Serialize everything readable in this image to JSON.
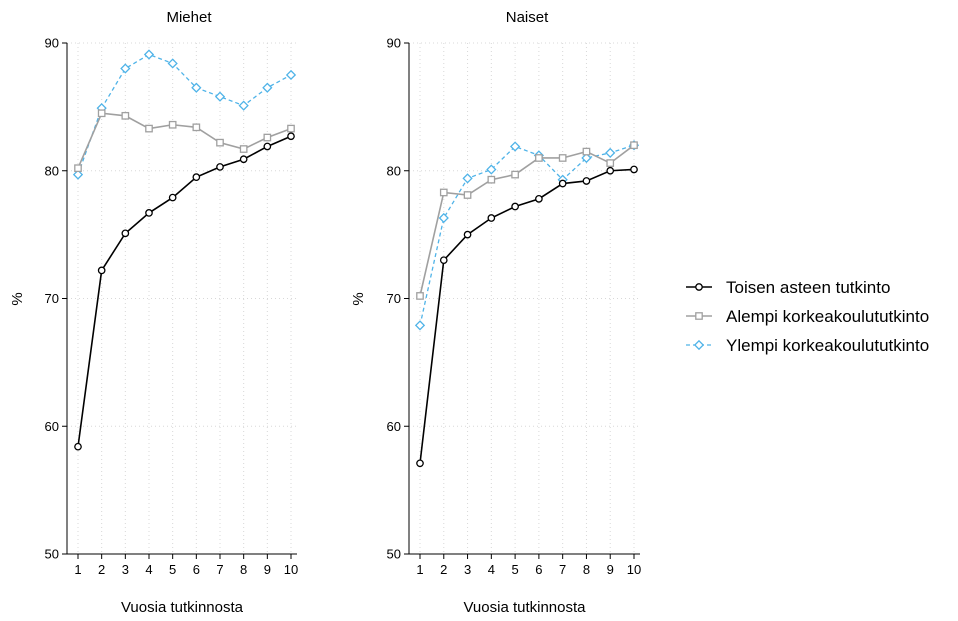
{
  "chart_data": [
    {
      "type": "line",
      "title": "Miehet",
      "xlabel": "Vuosia tutkinnosta",
      "ylabel": "%",
      "x": [
        1,
        2,
        3,
        4,
        5,
        6,
        7,
        8,
        9,
        10
      ],
      "xticks": [
        "1",
        "2",
        "3",
        "4",
        "5",
        "6",
        "7",
        "8",
        "9",
        "10"
      ],
      "ylim": [
        50,
        90
      ],
      "yticks": [
        "50",
        "60",
        "70",
        "80",
        "90"
      ],
      "grid": true,
      "series": [
        {
          "name": "Toisen asteen tutkinto",
          "values": [
            58.4,
            72.2,
            75.1,
            76.7,
            77.9,
            79.5,
            80.3,
            80.9,
            81.9,
            82.7
          ]
        },
        {
          "name": "Alempi korkeakoulututkinto",
          "values": [
            80.2,
            84.5,
            84.3,
            83.3,
            83.6,
            83.4,
            82.2,
            81.7,
            82.6,
            83.3
          ]
        },
        {
          "name": "Ylempi korkeakoulututkinto",
          "values": [
            79.7,
            84.9,
            88.0,
            89.1,
            88.4,
            86.5,
            85.8,
            85.1,
            86.5,
            87.5
          ]
        }
      ]
    },
    {
      "type": "line",
      "title": "Naiset",
      "xlabel": "Vuosia tutkinnosta",
      "ylabel": "%",
      "x": [
        1,
        2,
        3,
        4,
        5,
        6,
        7,
        8,
        9,
        10
      ],
      "xticks": [
        "1",
        "2",
        "3",
        "4",
        "5",
        "6",
        "7",
        "8",
        "9",
        "10"
      ],
      "ylim": [
        50,
        90
      ],
      "yticks": [
        "50",
        "60",
        "70",
        "80",
        "90"
      ],
      "grid": true,
      "series": [
        {
          "name": "Toisen asteen tutkinto",
          "values": [
            57.1,
            73.0,
            75.0,
            76.3,
            77.2,
            77.8,
            79.0,
            79.2,
            80.0,
            80.1
          ]
        },
        {
          "name": "Alempi korkeakoulututkinto",
          "values": [
            70.2,
            78.3,
            78.1,
            79.3,
            79.7,
            81.0,
            81.0,
            81.5,
            80.6,
            82.0
          ]
        },
        {
          "name": "Ylempi korkeakoulututkinto",
          "values": [
            67.9,
            76.3,
            79.4,
            80.1,
            81.9,
            81.2,
            79.3,
            81.0,
            81.4,
            82.0
          ]
        }
      ]
    }
  ],
  "legend": {
    "placement": "right",
    "items": [
      {
        "label": "Toisen asteen tutkinto",
        "color": "#000000",
        "marker": "circle",
        "dash": "solid"
      },
      {
        "label": "Alempi korkeakoulututkinto",
        "color": "#a0a0a0",
        "marker": "square",
        "dash": "solid"
      },
      {
        "label": "Ylempi korkeakoulututkinto",
        "color": "#4fb3e8",
        "marker": "diamond",
        "dash": "dashed"
      }
    ]
  },
  "colors": {
    "series": [
      "#000000",
      "#a0a0a0",
      "#4fb3e8"
    ],
    "axis": "#000000",
    "grid": "#d8d8d8"
  }
}
